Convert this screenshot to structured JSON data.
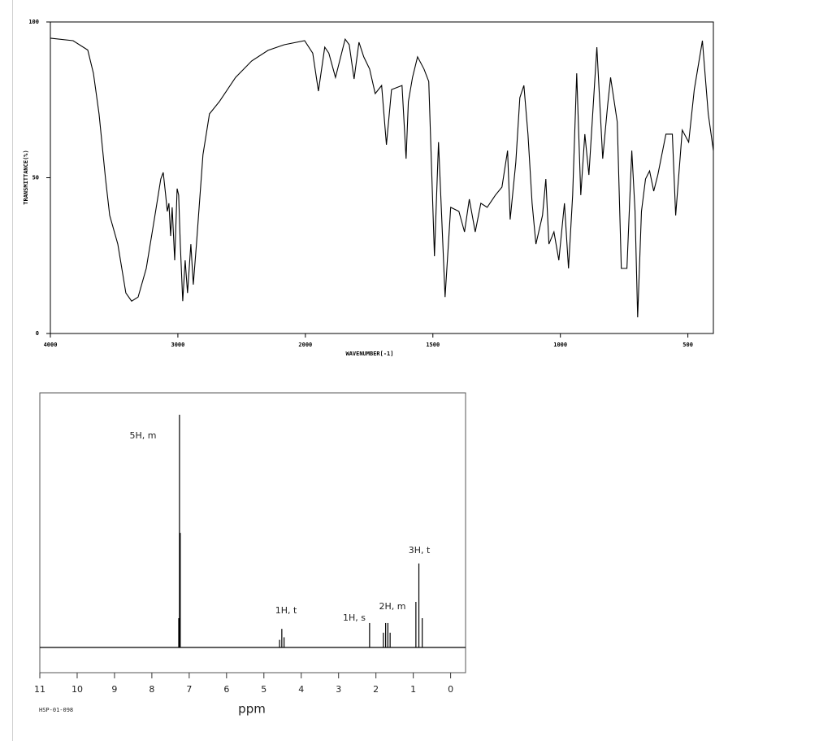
{
  "chart_data": [
    {
      "type": "line",
      "ylabel": "TRANSMITTANCE(%)",
      "xlabel": "WAVENUMBER[-1]",
      "color": "#000000",
      "x": [
        4000,
        3822,
        3707,
        3662,
        3618,
        3567,
        3535,
        3471,
        3408,
        3363,
        3312,
        3248,
        3185,
        3134,
        3115,
        3096,
        3083,
        3070,
        3057,
        3045,
        3025,
        3006,
        2994,
        2981,
        2962,
        2943,
        2924,
        2898,
        2879,
        2854,
        2803,
        2752,
        2675,
        2548,
        2421,
        2293,
        2166,
        2006,
        1971,
        1949,
        1924,
        1908,
        1882,
        1844,
        1828,
        1809,
        1790,
        1771,
        1748,
        1726,
        1701,
        1682,
        1662,
        1621,
        1605,
        1596,
        1580,
        1560,
        1535,
        1516,
        1494,
        1478,
        1452,
        1430,
        1398,
        1376,
        1357,
        1334,
        1312,
        1287,
        1255,
        1229,
        1207,
        1197,
        1175,
        1159,
        1143,
        1127,
        1111,
        1096,
        1070,
        1057,
        1045,
        1025,
        1006,
        984,
        968,
        952,
        936,
        920,
        904,
        888,
        857,
        834,
        815,
        803,
        777,
        761,
        739,
        720,
        707,
        697,
        682,
        666,
        650,
        634,
        618,
        586,
        561,
        548,
        522,
        497,
        475,
        443,
        420,
        400
      ],
      "values": [
        94.8,
        94,
        91,
        83.5,
        70.5,
        49.6,
        37.9,
        28.7,
        13,
        10.4,
        11.7,
        20.9,
        36.6,
        49.6,
        51.7,
        44.4,
        39.2,
        41.8,
        31.3,
        40.5,
        23.5,
        46.5,
        44.4,
        28.7,
        10.4,
        23.5,
        13,
        28.7,
        15.7,
        28.7,
        57.4,
        70.5,
        74.4,
        82.2,
        87.5,
        90.9,
        92.7,
        94,
        90,
        77.8,
        91.9,
        90,
        82.2,
        94.5,
        92.7,
        81.7,
        93.5,
        88.8,
        84.9,
        77,
        79.6,
        60.6,
        78.3,
        79.6,
        56.1,
        74.4,
        82.2,
        88.8,
        84.9,
        80.9,
        24.8,
        61.4,
        11.7,
        40.5,
        39.2,
        32.6,
        43.1,
        32.6,
        41.8,
        40.5,
        44.4,
        47,
        58.7,
        36.6,
        54.8,
        75.7,
        79.6,
        64,
        41.8,
        28.7,
        37.9,
        49.6,
        28.7,
        32.6,
        23.5,
        41.8,
        20.9,
        44.4,
        83.5,
        44.4,
        64,
        50.9,
        91.9,
        56.1,
        73.1,
        82.2,
        67.9,
        20.9,
        20.9,
        58.7,
        39.2,
        5.2,
        39.2,
        49.6,
        52.2,
        45.7,
        50.9,
        64,
        64,
        37.9,
        65.3,
        61.4,
        78.3,
        94,
        70.5,
        58.7
      ],
      "xlim": [
        4000,
        400
      ],
      "xticks": [
        4000,
        3000,
        2000,
        1500,
        1000,
        500
      ],
      "ylim": [
        0,
        100
      ],
      "yticks": [
        0,
        50,
        100
      ]
    },
    {
      "type": "stick",
      "xlabel": "ppm",
      "footnote": "HSP-01-098",
      "color": "#000000",
      "x": [
        7.28,
        7.26,
        7.24,
        4.58,
        4.52,
        4.46,
        2.17,
        1.8,
        1.74,
        1.68,
        1.62,
        0.93,
        0.85,
        0.76
      ],
      "values": [
        11.5,
        91.4,
        45,
        3,
        7.3,
        4,
        9.6,
        5.8,
        9.6,
        9.6,
        5.8,
        17.9,
        33,
        11.5
      ],
      "xlim": [
        11,
        -0.4
      ],
      "xticks": [
        11,
        10,
        9,
        8,
        7,
        6,
        5,
        4,
        3,
        2,
        1,
        0
      ],
      "ylim": [
        0,
        100
      ],
      "annotations": [
        "5H, m",
        "1H, t",
        "1H, s",
        "2H, m",
        "3H, t"
      ]
    }
  ]
}
